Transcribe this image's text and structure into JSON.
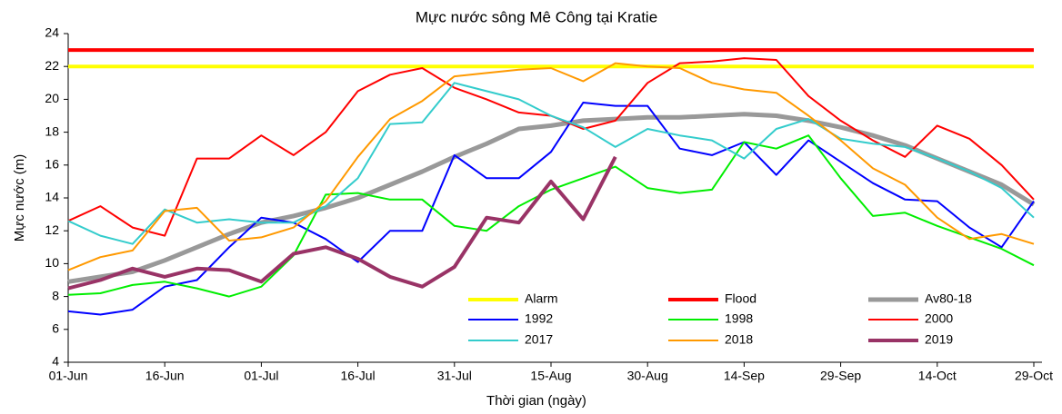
{
  "chart_data": {
    "type": "line",
    "title": "Mực nước sông Mê Công tại Kratie",
    "x_label": "Thời gian (ngày)",
    "y_label": "Mực nước (m)",
    "categories": [
      "01-Jun",
      null,
      null,
      "16-Jun",
      null,
      null,
      "01-Jul",
      null,
      null,
      "16-Jul",
      null,
      null,
      "31-Jul",
      null,
      null,
      "15-Aug",
      null,
      null,
      "30-Aug",
      null,
      null,
      "14-Sep",
      null,
      null,
      "29-Sep",
      null,
      null,
      "14-Oct",
      null,
      null,
      "29-Oct"
    ],
    "ylim": [
      4,
      24
    ],
    "yticks": [
      4,
      6,
      8,
      10,
      12,
      14,
      16,
      18,
      20,
      22,
      24
    ],
    "grid": false,
    "legend": "bottom-right",
    "series": [
      {
        "name": "Alarm",
        "color": "#ffff00",
        "values": [
          22,
          22,
          22,
          22,
          22,
          22,
          22,
          22,
          22,
          22,
          22,
          22,
          22,
          22,
          22,
          22,
          22,
          22,
          22,
          22,
          22,
          22,
          22,
          22,
          22,
          22,
          22,
          22,
          22,
          22,
          22
        ]
      },
      {
        "name": "Flood",
        "color": "#ff0000",
        "values": [
          23,
          23,
          23,
          23,
          23,
          23,
          23,
          23,
          23,
          23,
          23,
          23,
          23,
          23,
          23,
          23,
          23,
          23,
          23,
          23,
          23,
          23,
          23,
          23,
          23,
          23,
          23,
          23,
          23,
          23,
          23
        ]
      },
      {
        "name": "Av80-18",
        "color": "#999999",
        "values": [
          8.9,
          9.2,
          9.5,
          10.2,
          11.0,
          11.8,
          12.5,
          12.9,
          13.4,
          14.0,
          14.8,
          15.6,
          16.5,
          17.3,
          18.2,
          18.4,
          18.7,
          18.8,
          18.9,
          18.9,
          19.0,
          19.1,
          19.0,
          18.7,
          18.3,
          17.8,
          17.2,
          16.4,
          15.6,
          14.8,
          13.6
        ]
      },
      {
        "name": "1992",
        "color": "#0000ff",
        "values": [
          7.1,
          6.9,
          7.2,
          8.6,
          9.0,
          11.0,
          12.8,
          12.5,
          11.5,
          10.1,
          12.0,
          12.0,
          16.6,
          15.2,
          15.2,
          16.8,
          19.8,
          19.6,
          19.6,
          17.0,
          16.6,
          17.4,
          15.4,
          17.5,
          16.2,
          14.9,
          13.9,
          13.8,
          12.2,
          11.0,
          13.8
        ]
      },
      {
        "name": "1998",
        "color": "#00ee00",
        "values": [
          8.1,
          8.2,
          8.7,
          8.9,
          8.5,
          8.0,
          8.6,
          10.5,
          14.2,
          14.3,
          13.9,
          13.9,
          12.3,
          12.0,
          13.5,
          14.5,
          15.2,
          15.9,
          14.6,
          14.3,
          14.5,
          17.4,
          17.0,
          17.8,
          15.2,
          12.9,
          13.1,
          12.3,
          11.6,
          10.9,
          9.9
        ]
      },
      {
        "name": "2000",
        "color": "#ff0000",
        "values": [
          12.6,
          13.5,
          12.2,
          11.7,
          16.4,
          16.4,
          17.8,
          16.6,
          18.0,
          20.5,
          21.5,
          21.9,
          20.7,
          20.0,
          19.2,
          19.0,
          18.2,
          18.7,
          21.0,
          22.2,
          22.3,
          22.5,
          22.4,
          20.2,
          18.7,
          17.5,
          16.5,
          18.4,
          17.6,
          16.0,
          13.9
        ]
      },
      {
        "name": "2017",
        "color": "#33cccc",
        "values": [
          12.6,
          11.7,
          11.2,
          13.3,
          12.5,
          12.7,
          12.5,
          12.5,
          13.5,
          15.2,
          18.5,
          18.6,
          21.0,
          20.5,
          20.0,
          19.0,
          18.3,
          17.1,
          18.2,
          17.8,
          17.5,
          16.4,
          18.2,
          18.8,
          17.6,
          17.3,
          17.1,
          16.4,
          15.6,
          14.6,
          12.8
        ]
      },
      {
        "name": "2018",
        "color": "#ff9900",
        "values": [
          9.6,
          10.4,
          10.8,
          13.2,
          13.4,
          11.4,
          11.6,
          12.2,
          13.8,
          16.5,
          18.8,
          19.9,
          21.4,
          21.6,
          21.8,
          21.9,
          21.1,
          22.2,
          22.0,
          21.9,
          21.0,
          20.6,
          20.4,
          19.0,
          17.5,
          15.8,
          14.8,
          12.8,
          11.5,
          11.8,
          11.2
        ]
      },
      {
        "name": "2019",
        "color": "#993366",
        "values": [
          8.5,
          9.0,
          9.7,
          9.2,
          9.7,
          9.6,
          8.9,
          10.6,
          11.0,
          10.3,
          9.2,
          8.6,
          9.8,
          12.8,
          12.5,
          15.0,
          12.7,
          16.5,
          null,
          null,
          null,
          null,
          null,
          null,
          null,
          null,
          null,
          null,
          null,
          null,
          null
        ]
      }
    ]
  }
}
